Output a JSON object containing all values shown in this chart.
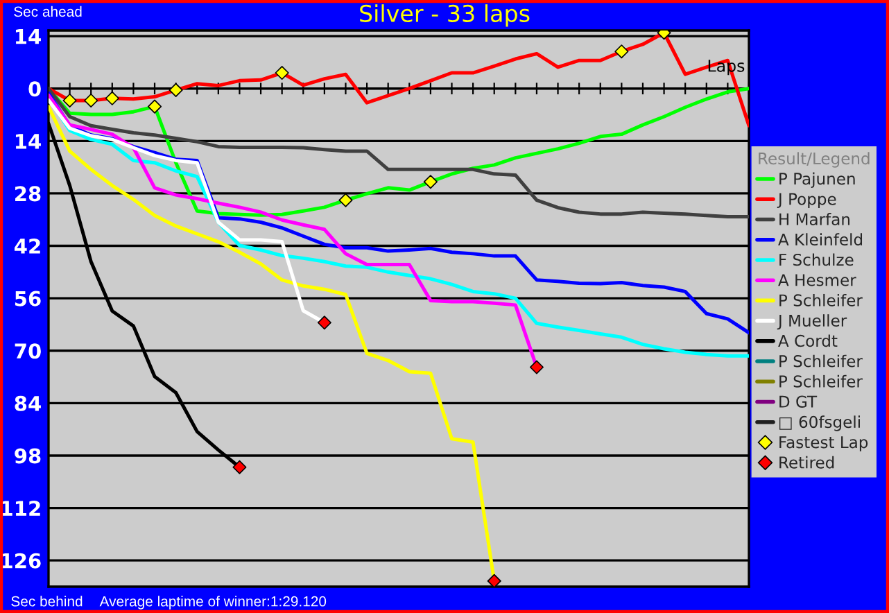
{
  "chart_data": {
    "type": "line",
    "title": "Silver - 33 laps",
    "annotations": [
      "Sec ahead",
      "Sec behind",
      "Average laptime of winner:1:29.120"
    ],
    "xlabel": "Laps",
    "legend_title": "Result/Legend",
    "legend": "right",
    "grid": "y",
    "tick_labels": "y",
    "categories": [
      null,
      null,
      null,
      null,
      null,
      null,
      null,
      null,
      null,
      null,
      null,
      null,
      null,
      null,
      null,
      null,
      null,
      null,
      null,
      null,
      null,
      null,
      null,
      null,
      null,
      null,
      null,
      null,
      null,
      null,
      null,
      null,
      null,
      null
    ],
    "ylim": [
      133,
      -15.5
    ],
    "yticks": [
      {
        "value": -14,
        "label": "14"
      },
      0,
      14,
      28,
      42,
      56,
      70,
      84,
      98,
      112,
      126
    ],
    "series": [
      {
        "name": "P Pajunen",
        "color": "#00ff00",
        "values": [
          0,
          6.6,
          6.9,
          6.9,
          6.2,
          4.8,
          19.8,
          32.7,
          33.4,
          33.6,
          33.8,
          33.6,
          32.7,
          31.7,
          29.8,
          28.1,
          26.5,
          27.1,
          24.9,
          22.8,
          21.3,
          20.4,
          18.5,
          17.3,
          16.1,
          14.6,
          12.8,
          12.2,
          9.7,
          7.5,
          5.0,
          2.8,
          0.9,
          0
        ]
      },
      {
        "name": "J Poppe",
        "color": "#ff0000",
        "values": [
          0,
          3.2,
          3.2,
          2.6,
          2.8,
          2.2,
          0.4,
          -1.3,
          -0.8,
          -2.1,
          -2.3,
          -4.2,
          -0.9,
          -2.6,
          -3.8,
          3.8,
          1.9,
          0,
          -2.1,
          -4.2,
          -4.2,
          -6.0,
          -7.9,
          -9.3,
          -5.7,
          -7.5,
          -7.5,
          -9.9,
          -11.8,
          -14.9,
          -3.8,
          -5.7,
          -7.5,
          9.9
        ]
      },
      {
        "name": "H Marfan",
        "color": "#404040",
        "values": [
          0,
          7.5,
          9.9,
          10.9,
          11.8,
          12.4,
          13.3,
          14.2,
          15.5,
          15.7,
          15.7,
          15.7,
          15.8,
          16.3,
          16.7,
          16.7,
          21.6,
          21.6,
          21.6,
          21.6,
          21.6,
          22.8,
          23.1,
          29.8,
          31.8,
          33.0,
          33.5,
          33.5,
          33.0,
          33.3,
          33.5,
          33.9,
          34.2,
          34.2
        ]
      },
      {
        "name": "A Kleinfeld",
        "color": "#0000ff",
        "values": [
          1.2,
          9.9,
          12.4,
          13.4,
          15.5,
          17.1,
          18.9,
          19.2,
          34.5,
          34.8,
          35.7,
          37.2,
          39.4,
          41.6,
          42.5,
          42.5,
          43.4,
          43.1,
          42.7,
          43.7,
          44.1,
          44.7,
          44.7,
          51.1,
          51.5,
          52.0,
          52.1,
          51.8,
          52.6,
          53.0,
          54.2,
          60.1,
          61.5,
          65.2
        ]
      },
      {
        "name": "F Schulze",
        "color": "#00ffff",
        "values": [
          2.5,
          11.2,
          13.6,
          14.9,
          19.2,
          19.8,
          22.0,
          23.5,
          35.7,
          41.9,
          43.1,
          44.6,
          45.3,
          46.2,
          47.4,
          47.7,
          49.0,
          49.9,
          50.8,
          52.3,
          54.2,
          54.8,
          56.0,
          62.7,
          63.7,
          64.6,
          65.5,
          66.4,
          68.3,
          69.5,
          70.4,
          71.0,
          71.4,
          71.4
        ]
      },
      {
        "name": "A Hesmer",
        "color": "#ff00ff",
        "values": [
          1.8,
          9.7,
          10.9,
          12.2,
          15.8,
          26.5,
          28.4,
          29.4,
          30.6,
          31.7,
          33.0,
          35.1,
          36.4,
          37.6,
          44.1,
          47.0,
          47.0,
          47.0,
          56.6,
          56.9,
          56.9,
          57.3,
          57.8,
          74.4,
          null,
          null,
          null,
          null,
          null,
          null,
          null,
          null,
          null,
          null
        ]
      },
      {
        "name": "P Schleifer",
        "color": "#ffff00",
        "values": [
          4.8,
          16.7,
          21.6,
          25.9,
          29.6,
          33.9,
          36.7,
          38.8,
          40.9,
          43.7,
          46.8,
          51.1,
          52.7,
          53.6,
          55.0,
          70.7,
          72.6,
          75.6,
          76.0,
          93.5,
          94.4,
          131.5,
          null,
          null,
          null,
          null,
          null,
          null,
          null,
          null,
          null,
          null,
          null,
          null
        ]
      },
      {
        "name": "J Mueller",
        "color": "#ffffff",
        "values": [
          3.1,
          10.6,
          12.6,
          13.6,
          15.8,
          17.9,
          19.2,
          19.8,
          35.7,
          40.4,
          40.4,
          40.9,
          59.3,
          62.5,
          null,
          null,
          null,
          null,
          null,
          null,
          null,
          null,
          null,
          null,
          null,
          null,
          null,
          null,
          null,
          null,
          null,
          null,
          null,
          null
        ]
      },
      {
        "name": "A Cordt",
        "color": "#000000",
        "values": [
          9.3,
          25.9,
          46.2,
          59.4,
          63.4,
          76.9,
          81.2,
          91.6,
          96.5,
          101.1,
          null,
          null,
          null,
          null,
          null,
          null,
          null,
          null,
          null,
          null,
          null,
          null,
          null,
          null,
          null,
          null,
          null,
          null,
          null,
          null,
          null,
          null,
          null,
          null
        ]
      },
      {
        "name": "P Schleifer",
        "color": "#008080",
        "values": [
          null,
          null,
          null,
          null,
          null,
          null,
          null,
          null,
          null,
          null,
          null,
          null,
          null,
          null,
          null,
          null,
          null,
          null,
          null,
          null,
          null,
          null,
          null,
          null,
          null,
          null,
          null,
          null,
          null,
          null,
          null,
          null,
          null,
          null
        ]
      },
      {
        "name": "P Schleifer",
        "color": "#808000",
        "values": [
          null,
          null,
          null,
          null,
          null,
          null,
          null,
          null,
          null,
          null,
          null,
          null,
          null,
          null,
          null,
          null,
          null,
          null,
          null,
          null,
          null,
          null,
          null,
          null,
          null,
          null,
          null,
          null,
          null,
          null,
          null,
          null,
          null,
          null
        ]
      },
      {
        "name": "D GT",
        "color": "#800080",
        "values": [
          null,
          null,
          null,
          null,
          null,
          null,
          null,
          null,
          null,
          null,
          null,
          null,
          null,
          null,
          null,
          null,
          null,
          null,
          null,
          null,
          null,
          null,
          null,
          null,
          null,
          null,
          null,
          null,
          null,
          null,
          null,
          null,
          null,
          null
        ]
      },
      {
        "name": "□ 60fsgeli",
        "color": "#202020",
        "values": [
          null,
          null,
          null,
          null,
          null,
          null,
          null,
          null,
          null,
          null,
          null,
          null,
          null,
          null,
          null,
          null,
          null,
          null,
          null,
          null,
          null,
          null,
          null,
          null,
          null,
          null,
          null,
          null,
          null,
          null,
          null,
          null,
          null,
          null
        ]
      },
      {
        "name": "Fastest Lap",
        "type": "scatter",
        "marker": "diamond",
        "color": "#ffff00",
        "values": [
          null,
          3.2,
          3.2,
          2.6,
          null,
          4.8,
          0.4,
          null,
          null,
          null,
          null,
          -4.2,
          null,
          null,
          29.8,
          null,
          null,
          null,
          24.9,
          null,
          null,
          null,
          null,
          null,
          null,
          null,
          null,
          -9.9,
          null,
          -14.9,
          null,
          null,
          null,
          null
        ]
      },
      {
        "name": "Retired",
        "type": "scatter",
        "marker": "diamond",
        "color": "#ff0000",
        "values": [
          null,
          null,
          null,
          null,
          null,
          null,
          null,
          null,
          null,
          101.1,
          null,
          null,
          null,
          62.5,
          null,
          null,
          null,
          null,
          null,
          null,
          null,
          131.5,
          null,
          74.4,
          null,
          null,
          null,
          null,
          null,
          null,
          null,
          null,
          null,
          null
        ]
      }
    ]
  }
}
